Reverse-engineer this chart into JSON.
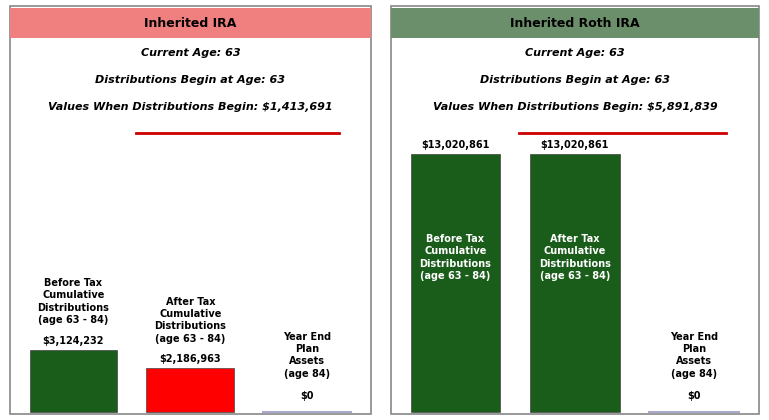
{
  "left_title": "Inherited IRA",
  "left_header_color": "#F08080",
  "left_line1": "Current Age: 63",
  "left_line2": "Distributions Begin at Age: 63",
  "left_line3_prefix": "Values When Distributions Begin: ",
  "left_line3_value": "$1,413,691",
  "left_bars": [
    {
      "label": "Before Tax\nCumulative\nDistributions\n(age 63 - 84)",
      "value": 3124232,
      "color": "#1a5c1a",
      "above_label": "$3,124,232",
      "label_inside": false,
      "label_color": "black"
    },
    {
      "label": "After Tax\nCumulative\nDistributions\n(age 63 - 84)",
      "value": 2186963,
      "color": "#ff0000",
      "above_label": "$2,186,963",
      "label_inside": false,
      "label_color": "black"
    },
    {
      "label": "Year End\nPlan\nAssets\n(age 84)",
      "value": 0,
      "color": "#ccccff",
      "above_label": "$0",
      "label_inside": false,
      "label_color": "black"
    }
  ],
  "right_title": "Inherited Roth IRA",
  "right_header_color": "#6b8f6b",
  "right_line1": "Current Age: 63",
  "right_line2": "Distributions Begin at Age: 63",
  "right_line3_prefix": "Values When Distributions Begin: ",
  "right_line3_value": "$5,891,839",
  "right_bars": [
    {
      "label": "Before Tax\nCumulative\nDistributions\n(age 63 - 84)",
      "value": 13020861,
      "color": "#1a5c1a",
      "above_label": "$13,020,861",
      "label_inside": true,
      "label_color": "white"
    },
    {
      "label": "After Tax\nCumulative\nDistributions\n(age 63 - 84)",
      "value": 13020861,
      "color": "#1a5c1a",
      "above_label": "$13,020,861",
      "label_inside": true,
      "label_color": "white"
    },
    {
      "label": "Year End\nPlan\nAssets\n(age 84)",
      "value": 0,
      "color": "#ccccff",
      "above_label": "$0",
      "label_inside": false,
      "label_color": "black"
    }
  ],
  "max_value": 13020861,
  "underline_color": "#cc0000",
  "background_color": "#ffffff",
  "border_color": "#888888",
  "font_size_title": 9,
  "font_size_info": 8,
  "font_size_bar_label": 7,
  "font_size_value": 7
}
